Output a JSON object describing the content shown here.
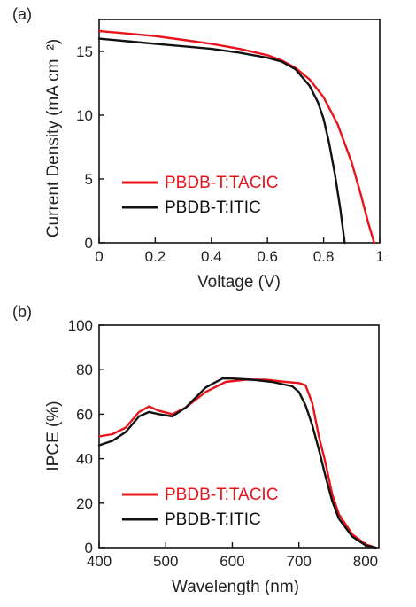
{
  "chart_data": [
    {
      "panel_label": "(a)",
      "type": "line",
      "xlabel": "Voltage (V)",
      "ylabel": "Current Density (mA cm⁻²)",
      "xlim": [
        0,
        1
      ],
      "ylim": [
        0,
        17.5
      ],
      "x_ticks": [
        0,
        0.2,
        0.4,
        0.6,
        0.8,
        1
      ],
      "x_tick_labels": [
        "0",
        "0.2",
        "0.4",
        "0.6",
        "0.8",
        "1"
      ],
      "y_ticks": [
        0,
        5,
        10,
        15
      ],
      "y_tick_labels": [
        "0",
        "5",
        "10",
        "15"
      ],
      "grid": false,
      "legend_position": "bottom-left",
      "series": [
        {
          "name": "PBDB-T:TACIC",
          "color": "#e8141c",
          "x": [
            0,
            0.1,
            0.2,
            0.3,
            0.4,
            0.5,
            0.6,
            0.65,
            0.7,
            0.75,
            0.8,
            0.85,
            0.9,
            0.93,
            0.96,
            0.98
          ],
          "y": [
            16.6,
            16.4,
            16.2,
            15.9,
            15.6,
            15.2,
            14.7,
            14.3,
            13.7,
            12.8,
            11.4,
            9.3,
            6.3,
            4.0,
            1.5,
            0
          ]
        },
        {
          "name": "PBDB-T:ITIC",
          "color": "#111111",
          "x": [
            0,
            0.1,
            0.2,
            0.3,
            0.4,
            0.5,
            0.6,
            0.65,
            0.7,
            0.75,
            0.78,
            0.8,
            0.82,
            0.84,
            0.86,
            0.875
          ],
          "y": [
            16.0,
            15.8,
            15.6,
            15.4,
            15.2,
            14.9,
            14.5,
            14.2,
            13.6,
            12.3,
            11.0,
            9.7,
            7.8,
            5.4,
            2.6,
            0
          ]
        }
      ]
    },
    {
      "panel_label": "(b)",
      "type": "line",
      "xlabel": "Wavelength (nm)",
      "ylabel": "IPCE (%)",
      "xlim": [
        400,
        820
      ],
      "ylim": [
        0,
        100
      ],
      "x_ticks": [
        400,
        500,
        600,
        700,
        800
      ],
      "x_tick_labels": [
        "400",
        "500",
        "600",
        "700",
        "800"
      ],
      "y_ticks": [
        0,
        20,
        40,
        60,
        80,
        100
      ],
      "y_tick_labels": [
        "0",
        "20",
        "40",
        "60",
        "80",
        "100"
      ],
      "grid": false,
      "legend_position": "bottom-left",
      "series": [
        {
          "name": "PBDB-T:TACIC",
          "color": "#e8141c",
          "x": [
            400,
            420,
            440,
            460,
            475,
            490,
            510,
            530,
            560,
            590,
            620,
            650,
            680,
            700,
            710,
            720,
            730,
            740,
            750,
            760,
            780,
            800,
            815
          ],
          "y": [
            50,
            51,
            54,
            61,
            63.5,
            61.5,
            60,
            63,
            70,
            74.5,
            75.5,
            75.5,
            74.5,
            74,
            73,
            65,
            50,
            38,
            24,
            15,
            6,
            1.5,
            0
          ]
        },
        {
          "name": "PBDB-T:ITIC",
          "color": "#111111",
          "x": [
            400,
            420,
            440,
            460,
            475,
            490,
            510,
            530,
            560,
            585,
            600,
            630,
            660,
            690,
            700,
            710,
            720,
            730,
            740,
            750,
            760,
            780,
            800,
            815
          ],
          "y": [
            46,
            48,
            52,
            59,
            61,
            60,
            59,
            63,
            72,
            76,
            76,
            75.5,
            74.5,
            72.5,
            70,
            64,
            55,
            44,
            32,
            21,
            13,
            5,
            1,
            0
          ]
        }
      ]
    }
  ]
}
